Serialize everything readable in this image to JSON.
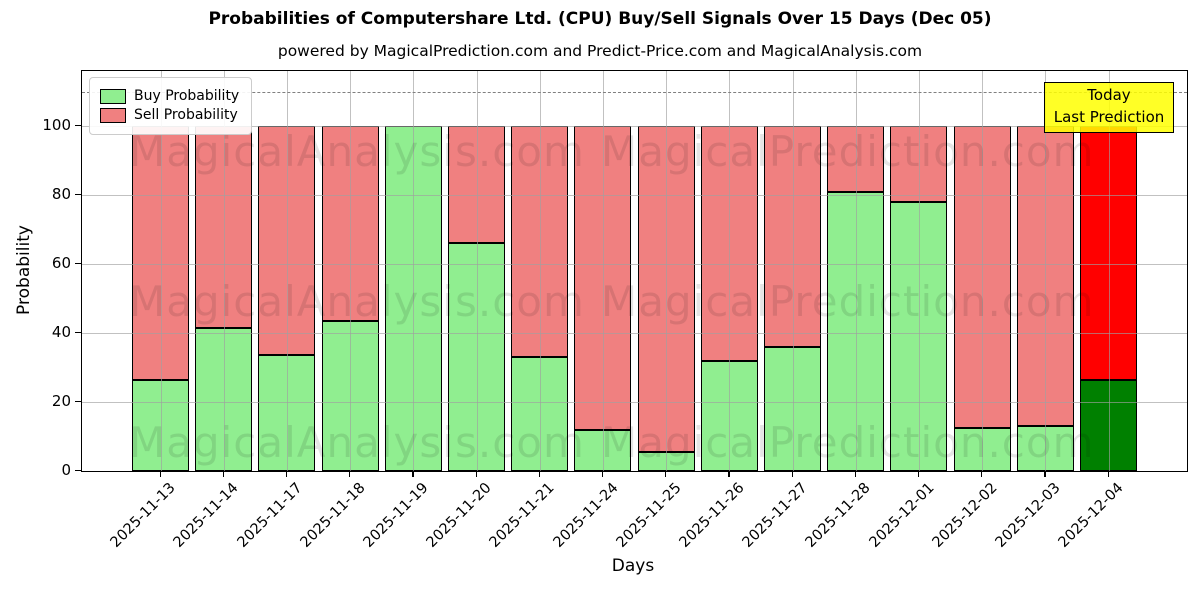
{
  "title": "Probabilities of Computershare Ltd. (CPU) Buy/Sell Signals Over 15 Days (Dec 05)",
  "subtitle": "powered by MagicalPrediction.com and Predict-Price.com and MagicalAnalysis.com",
  "axes": {
    "ylabel": "Probability",
    "xlabel": "Days",
    "yticks": [
      0,
      20,
      40,
      60,
      80,
      100
    ],
    "ylim": [
      0,
      116
    ],
    "dashed_line_y": 110,
    "grid": true
  },
  "legend": {
    "position": "upper left",
    "items": [
      {
        "label": "Buy Probability",
        "color": "#90EE90"
      },
      {
        "label": "Sell Probability",
        "color": "#F08080"
      }
    ]
  },
  "annotation": {
    "line1": "Today",
    "line2": "Last Prediction",
    "bg_css": "rgba(255,255,0,0.85)",
    "border_color": "#000000"
  },
  "watermark": {
    "left_text": "MagicalAnalysis.com",
    "right_text": "MagicalPrediction.com"
  },
  "chart_data": {
    "type": "bar",
    "stacked": true,
    "title": "Probabilities of Computershare Ltd. (CPU) Buy/Sell Signals Over 15 Days (Dec 05)",
    "xlabel": "Days",
    "ylabel": "Probability",
    "ylim": [
      0,
      116
    ],
    "grid": true,
    "legend_position": "upper left",
    "categories": [
      "2025-11-13",
      "2025-11-14",
      "2025-11-17",
      "2025-11-18",
      "2025-11-19",
      "2025-11-20",
      "2025-11-21",
      "2025-11-24",
      "2025-11-25",
      "2025-11-26",
      "2025-11-27",
      "2025-11-28",
      "2025-12-01",
      "2025-12-02",
      "2025-12-03",
      "2025-12-04"
    ],
    "series": [
      {
        "name": "Buy Probability",
        "color": "#90EE90",
        "values": [
          26.5,
          41.5,
          33.5,
          43.5,
          100,
          66,
          33,
          12,
          5.5,
          32,
          36,
          81,
          78,
          12.5,
          13,
          26.5
        ]
      },
      {
        "name": "Sell Probability",
        "color": "#F08080",
        "values": [
          73.5,
          58.5,
          66.5,
          56.5,
          0,
          34,
          67,
          88,
          94.5,
          68,
          64,
          19,
          22,
          87.5,
          87,
          73.5
        ]
      }
    ],
    "today_index": 15,
    "today_colors": {
      "buy": "#008000",
      "sell": "#FF0000"
    },
    "bar_edge_color": "#000000"
  }
}
